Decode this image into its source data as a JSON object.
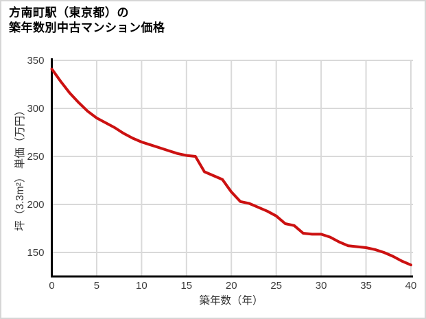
{
  "page": {
    "background": "#ffffff",
    "border_color": "#d6d6d6"
  },
  "title": {
    "line1": "方南町駅（東京都）の",
    "line2": "築年数別中古マンション価格"
  },
  "chart_data": {
    "type": "line",
    "title": "方南町駅（東京都）の築年数別中古マンション価格",
    "xlabel": "築年数（年）",
    "ylabel": "坪（3.3m²） 単価（万円）",
    "x": [
      0,
      1,
      2,
      3,
      4,
      5,
      6,
      7,
      8,
      9,
      10,
      11,
      12,
      13,
      14,
      15,
      16,
      17,
      18,
      19,
      20,
      21,
      22,
      23,
      24,
      25,
      26,
      27,
      28,
      29,
      30,
      31,
      32,
      33,
      34,
      35,
      36,
      37,
      38,
      39,
      40
    ],
    "values": [
      341,
      328,
      316,
      306,
      297,
      290,
      285,
      280,
      274,
      269,
      265,
      262,
      259,
      256,
      253,
      251,
      250,
      234,
      230,
      226,
      213,
      203,
      201,
      197,
      193,
      188,
      180,
      178,
      170,
      169,
      169,
      166,
      161,
      157,
      156,
      155,
      153,
      150,
      146,
      141,
      137
    ],
    "xlim": [
      0,
      40
    ],
    "ylim": [
      125,
      350
    ],
    "x_ticks": [
      0,
      5,
      10,
      15,
      20,
      25,
      30,
      35,
      40
    ],
    "y_ticks": [
      150,
      200,
      250,
      300,
      350
    ],
    "grid": true,
    "legend": "none",
    "line_color": "#cc1111",
    "line_width": 4,
    "grid_color": "#d9d9d9",
    "axis_color": "#000000",
    "tick_color": "#3a3a3a"
  }
}
